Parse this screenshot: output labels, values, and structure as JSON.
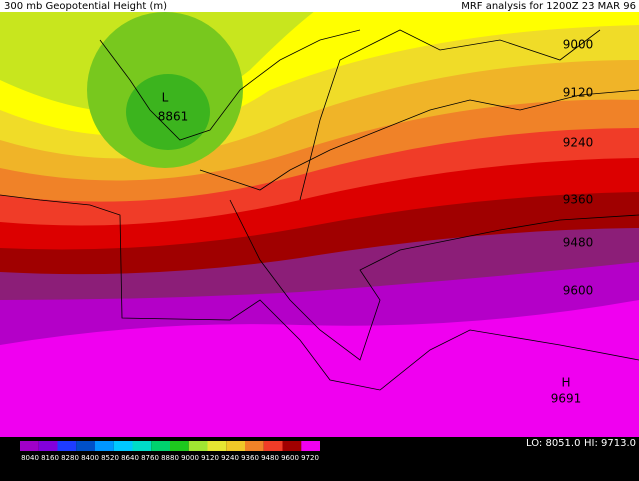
{
  "header": {
    "title": "300 mb Geopotential Height (m)",
    "subtitle": "MRF analysis for 1200Z 23 MAR 96"
  },
  "map_labels": [
    "9000",
    "9120",
    "9240",
    "9360",
    "9480",
    "9600",
    "L",
    "8861",
    "H",
    "9691"
  ],
  "legend": {
    "colors": [
      "#a000c8",
      "#8200dc",
      "#1e3cff",
      "#0050c8",
      "#0096ff",
      "#00c8ff",
      "#00dcc8",
      "#00d26e",
      "#1ec81e",
      "#a0e632",
      "#e6e632",
      "#f0c828",
      "#f08228",
      "#f03c28",
      "#a00000",
      "#f000f0"
    ],
    "labels": [
      "8040",
      "8160",
      "8280",
      "8400",
      "8520",
      "8640",
      "8760",
      "8880",
      "9000",
      "9120",
      "9240",
      "9360",
      "9480",
      "9600",
      "9720"
    ]
  },
  "footer": {
    "low": "LO: 8051.0",
    "high": "HI: 9713.0"
  }
}
